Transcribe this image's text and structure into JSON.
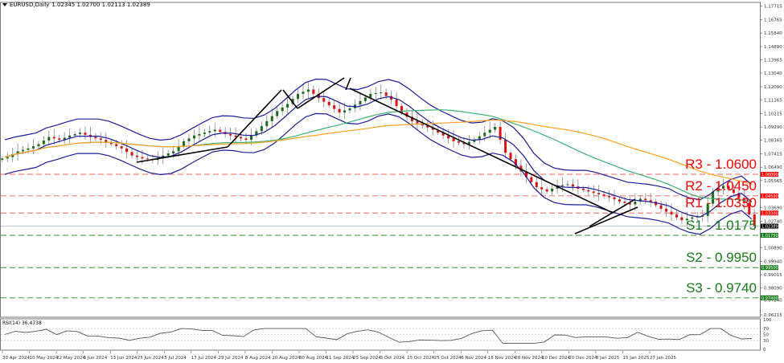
{
  "header": {
    "symbol": "EURUSD,Daily",
    "ohlc": "1.02345 1.02700 1.02113 1.02389"
  },
  "rsi": {
    "label": "RSI(14) 36.4738",
    "levels": [
      100,
      70,
      50,
      30,
      0
    ]
  },
  "price_axis": [
    "1.17715",
    "1.16765",
    "1.15840",
    "1.14890",
    "1.13965",
    "1.13040",
    "1.12090",
    "1.11165",
    "1.10215",
    "1.09290",
    "1.08365",
    "1.07415",
    "1.06490",
    "1.05565",
    "1.03690",
    "1.02740",
    "1.00890",
    "0.99940",
    "0.99015",
    "0.98090",
    "0.97240",
    "0.96215"
  ],
  "levels": [
    {
      "name": "R3",
      "label": "R3 - 1.0600",
      "tag": "1.06000",
      "value": 1.06,
      "type": "resistance"
    },
    {
      "name": "R2",
      "label": "R2 - 1.0450",
      "tag": "1.04500",
      "value": 1.045,
      "type": "resistance"
    },
    {
      "name": "R1",
      "label": "R1 - 1.0330",
      "tag": "1.03300",
      "value": 1.033,
      "type": "resistance"
    },
    {
      "name": "S1",
      "label": "S1 - 1.0175",
      "tag": "1.01750",
      "value": 1.0175,
      "type": "support"
    },
    {
      "name": "S2",
      "label": "S2 - 0.9950",
      "tag": "0.99500",
      "value": 0.995,
      "type": "support"
    },
    {
      "name": "S3",
      "label": "S3 - 0.9740",
      "tag": "0.97400",
      "value": 0.974,
      "type": "support"
    }
  ],
  "current_price": {
    "tag": "1.02389",
    "value": 1.02389
  },
  "colors": {
    "resistance": "#ff0000",
    "support": "#1a7a1a",
    "bull": "#1a6b1a",
    "bear": "#e01010",
    "bands": "#1c1c9c",
    "ma_green": "#3cb371",
    "ma_orange": "#ffa020",
    "trend": "#000000"
  },
  "chart_data": {
    "type": "candlestick",
    "title": "EURUSD,Daily",
    "xlabel": "",
    "ylabel": "",
    "x_ticks": [
      "30 Apr 2024",
      "10 May 2024",
      "22 May 2024",
      "3 Jun 2024",
      "13 Jun 2024",
      "25 Jun 2024",
      "5 Jul 2024",
      "17 Jul 2024",
      "29 Jul 2024",
      "8 Aug 2024",
      "20 Aug 2024",
      "30 Aug 2024",
      "11 Sep 2024",
      "23 Sep 2024",
      "3 Oct 2024",
      "15 Oct 2024",
      "25 Oct 2024",
      "6 Nov 2024",
      "18 Nov 2024",
      "28 Nov 2024",
      "10 Dec 2024",
      "20 Dec 2024",
      "3 Jan 2025",
      "15 Jan 2025",
      "27 Jan 2025"
    ],
    "ylim": [
      0.96215,
      1.17715
    ],
    "close_approx": [
      1.072,
      1.076,
      1.078,
      1.081,
      1.086,
      1.084,
      1.087,
      1.089,
      1.086,
      1.084,
      1.081,
      1.078,
      1.073,
      1.071,
      1.07,
      1.073,
      1.076,
      1.083,
      1.087,
      1.089,
      1.091,
      1.088,
      1.086,
      1.084,
      1.09,
      1.097,
      1.104,
      1.109,
      1.116,
      1.119,
      1.113,
      1.108,
      1.103,
      1.106,
      1.111,
      1.116,
      1.117,
      1.112,
      1.103,
      1.097,
      1.094,
      1.091,
      1.087,
      1.083,
      1.081,
      1.084,
      1.089,
      1.093,
      1.075,
      1.066,
      1.058,
      1.051,
      1.048,
      1.052,
      1.053,
      1.05,
      1.048,
      1.046,
      1.044,
      1.041,
      1.039,
      1.043,
      1.041,
      1.036,
      1.032,
      1.028,
      1.03,
      1.031,
      1.048,
      1.052,
      1.047,
      1.04,
      1.0239
    ],
    "indicators": [
      "Bollinger Bands (20)",
      "MA 100 (green)",
      "MA 200 (orange)",
      "RSI(14)"
    ],
    "rsi_value": 36.4738
  }
}
